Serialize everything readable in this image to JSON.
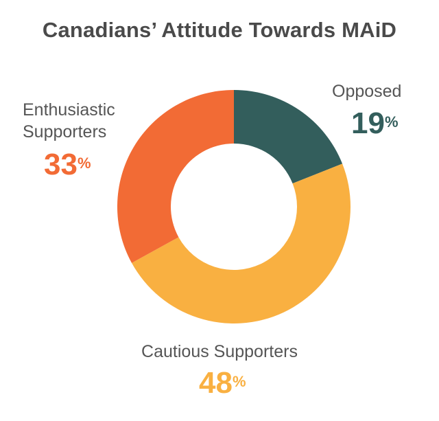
{
  "chart_data": {
    "type": "pie",
    "title": "Canadians’ Attitude Towards MAiD",
    "donut": true,
    "slices": [
      {
        "label": "Opposed",
        "value": 19,
        "display": "19",
        "unit": "%",
        "color": "#335e5c"
      },
      {
        "label": "Cautious Supporters",
        "value": 48,
        "display": "48",
        "unit": "%",
        "color": "#f9b041"
      },
      {
        "label": "Enthusiastic Supporters",
        "value": 33,
        "display": "33",
        "unit": "%",
        "color": "#f26b35"
      }
    ]
  }
}
